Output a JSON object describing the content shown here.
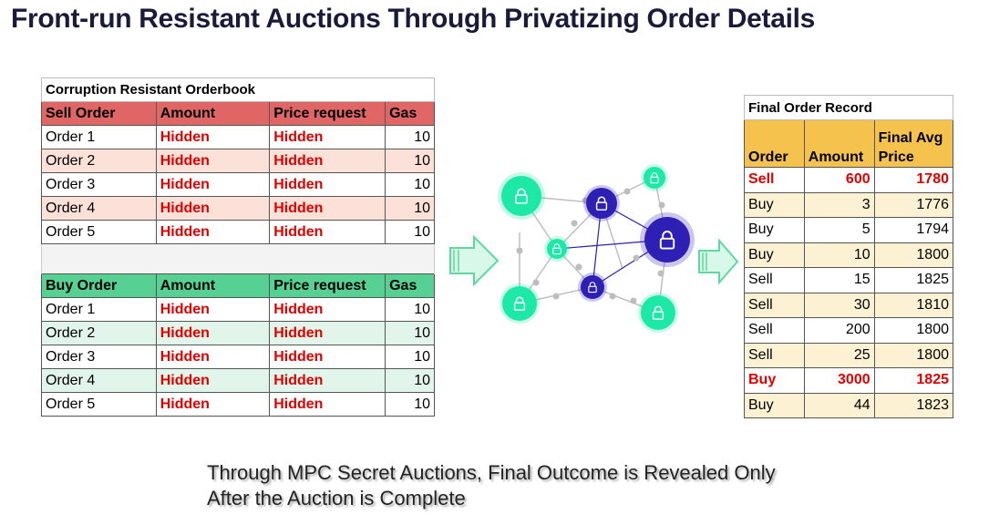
{
  "title": "Front-run Resistant Auctions Through Privatizing Order Details",
  "orderbook": {
    "caption": "Corruption Resistant Orderbook",
    "sell": {
      "headers": [
        "Sell Order",
        "Amount",
        "Price request",
        "Gas"
      ],
      "rows": [
        [
          "Order 1",
          "Hidden",
          "Hidden",
          "10"
        ],
        [
          "Order 2",
          "Hidden",
          "Hidden",
          "10"
        ],
        [
          "Order 3",
          "Hidden",
          "Hidden",
          "10"
        ],
        [
          "Order 4",
          "Hidden",
          "Hidden",
          "10"
        ],
        [
          "Order 5",
          "Hidden",
          "Hidden",
          "10"
        ]
      ]
    },
    "buy": {
      "headers": [
        "Buy Order",
        "Amount",
        "Price request",
        "Gas"
      ],
      "rows": [
        [
          "Order 1",
          "Hidden",
          "Hidden",
          "10"
        ],
        [
          "Order 2",
          "Hidden",
          "Hidden",
          "10"
        ],
        [
          "Order 3",
          "Hidden",
          "Hidden",
          "10"
        ],
        [
          "Order 4",
          "Hidden",
          "Hidden",
          "10"
        ],
        [
          "Order 5",
          "Hidden",
          "Hidden",
          "10"
        ]
      ]
    }
  },
  "final_record": {
    "caption": "Final Order Record",
    "headers": [
      "Order",
      "Amount",
      "Final Avg Price"
    ],
    "rows": [
      [
        "Sell",
        "600",
        "1780"
      ],
      [
        "Buy",
        "3",
        "1776"
      ],
      [
        "Buy",
        "5",
        "1794"
      ],
      [
        "Buy",
        "10",
        "1800"
      ],
      [
        "Sell",
        "15",
        "1825"
      ],
      [
        "Sell",
        "30",
        "1810"
      ],
      [
        "Sell",
        "200",
        "1800"
      ],
      [
        "Sell",
        "25",
        "1800"
      ],
      [
        "Buy",
        "3000",
        "1825"
      ],
      [
        "Buy",
        "44",
        "1823"
      ]
    ]
  },
  "footer": {
    "line1": "Through MPC Secret Auctions, Final Outcome is Revealed Only",
    "line2": "After the Auction is Complete"
  },
  "colors": {
    "sell_header": "#e06666",
    "buy_header": "#57d094",
    "final_header": "#f6c24e",
    "hidden_text": "#e00000",
    "node_green": "#1de9a6",
    "node_blue": "#2e1fb5"
  },
  "icons": [
    "lock-icon",
    "arrow-right-icon"
  ]
}
